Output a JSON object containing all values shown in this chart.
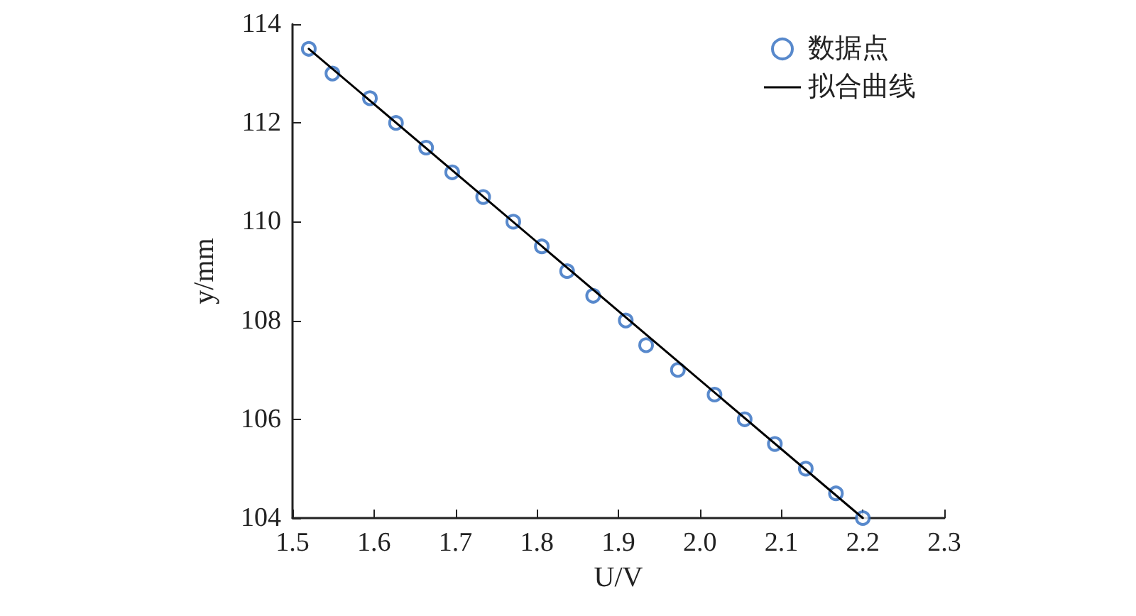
{
  "chart_data": {
    "type": "scatter",
    "xlabel": "U/V",
    "ylabel": "y/mm",
    "xlim": [
      1.5,
      2.3
    ],
    "xticks": [
      1.5,
      1.6,
      1.7,
      1.8,
      1.9,
      {
        "value": 2,
        "label": "2.0"
      },
      2.1,
      2.2,
      2.3
    ],
    "ylim": [
      104,
      114
    ],
    "yticks": [
      104,
      106,
      108,
      110,
      112,
      114
    ],
    "grid": false,
    "legend": "top right",
    "series": [
      {
        "name": "数据点",
        "marker": "circle",
        "color": "#2e6bbf",
        "x": [
          1.52,
          1.549,
          1.595,
          1.627,
          1.664,
          1.696,
          1.734,
          1.771,
          1.806,
          1.837,
          1.869,
          1.909,
          1.934,
          1.973,
          2.018,
          2.055,
          2.092,
          2.13,
          2.167,
          2.2
        ],
        "values": [
          113.5,
          113,
          112.5,
          112,
          111.5,
          111,
          110.5,
          110,
          109.5,
          109,
          108.5,
          108,
          107.5,
          107,
          106.5,
          106,
          105.5,
          105,
          104.5,
          104
        ]
      },
      {
        "name": "拟合曲线",
        "type": "line",
        "marker": "none",
        "line_style": "solid",
        "color": "#000000",
        "x": [
          1.52,
          2.2
        ],
        "values": [
          113.5,
          104.0
        ]
      }
    ]
  }
}
